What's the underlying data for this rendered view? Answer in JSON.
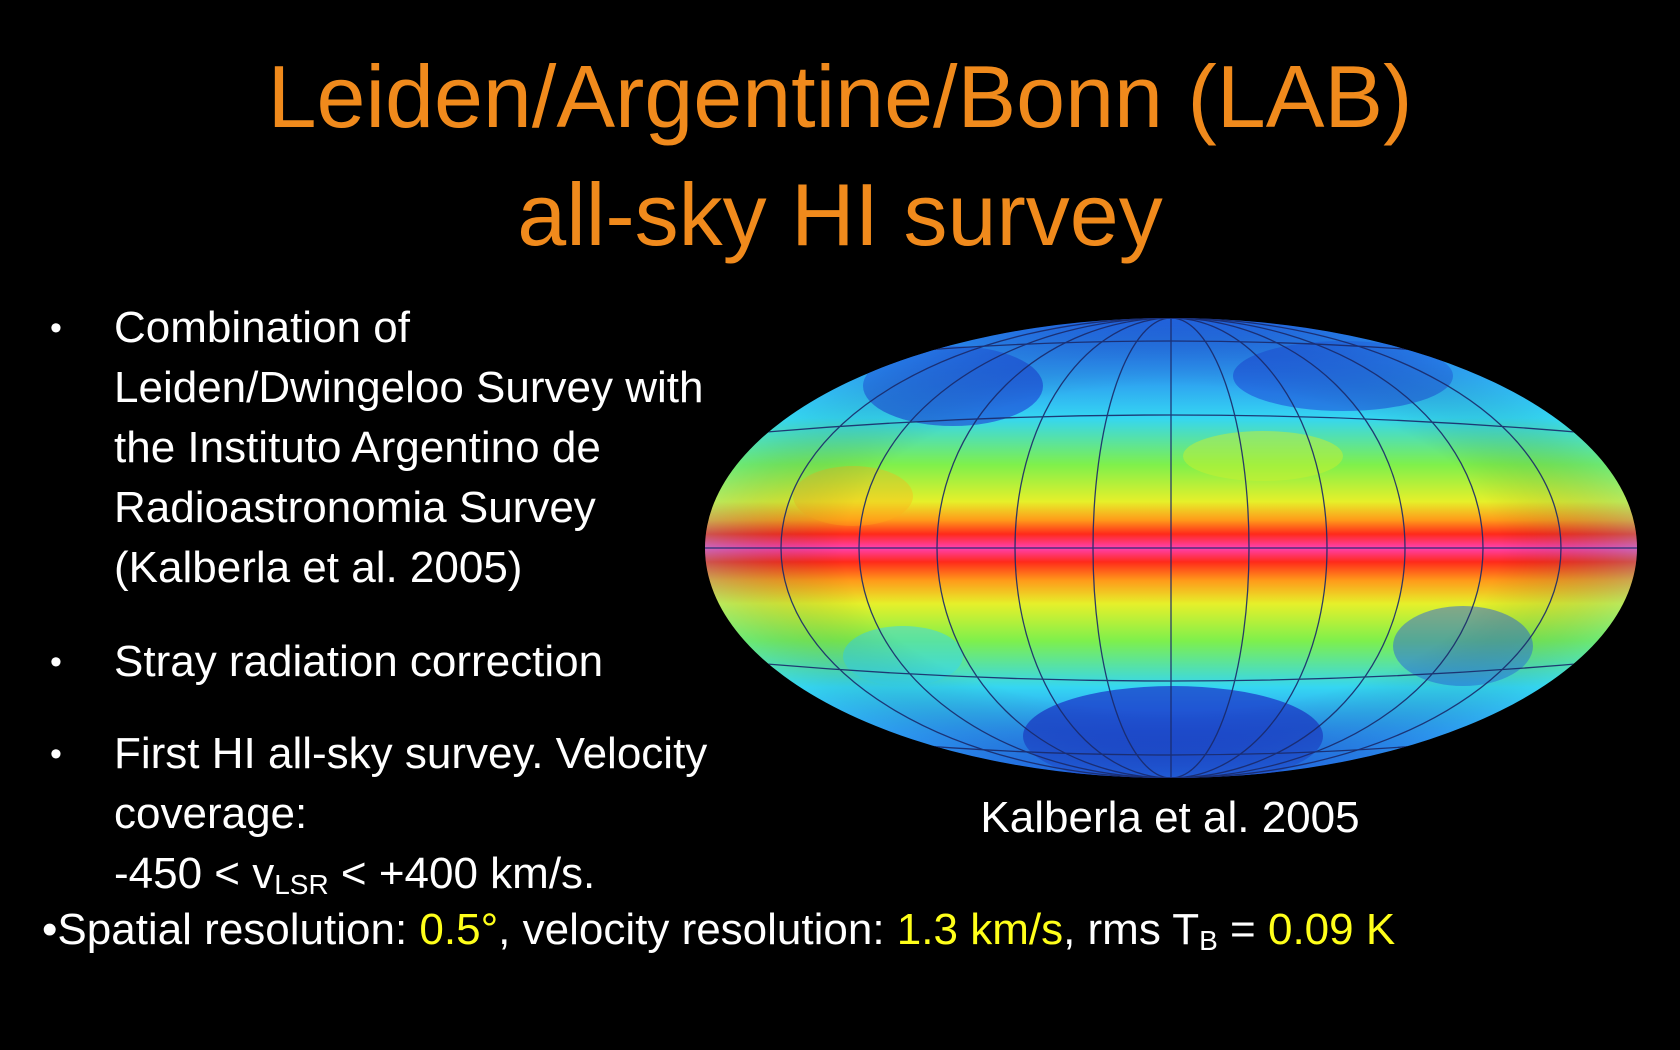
{
  "title": {
    "line1": "Leiden/Argentine/Bonn (LAB)",
    "line2": "all-sky HI survey"
  },
  "bullets": [
    {
      "text": "Combination of Leiden/Dwingeloo Survey with the Instituto Argentino de Radioastronomia Survey (Kalberla et al. 2005)"
    },
    {
      "text": "Stray radiation correction"
    },
    {
      "text": "First HI all-sky survey. Velocity coverage:",
      "range_prefix": "-450 < v",
      "range_sub": "LSR",
      "range_suffix": " < +400 km/s."
    }
  ],
  "bullet_glyph": "•",
  "caption": "Kalberla et al. 2005",
  "footer": {
    "label1": "Spatial resolution: ",
    "value1": "0.5°",
    "label2": ", velocity resolution: ",
    "value2": "1.3 km/s",
    "label3": ", rms T",
    "label3_sub": "B",
    "label4": " = ",
    "value3": "0.09 K"
  },
  "colors": {
    "title": "#f08a1c",
    "highlight": "#ffff1a",
    "background": "#000000"
  }
}
